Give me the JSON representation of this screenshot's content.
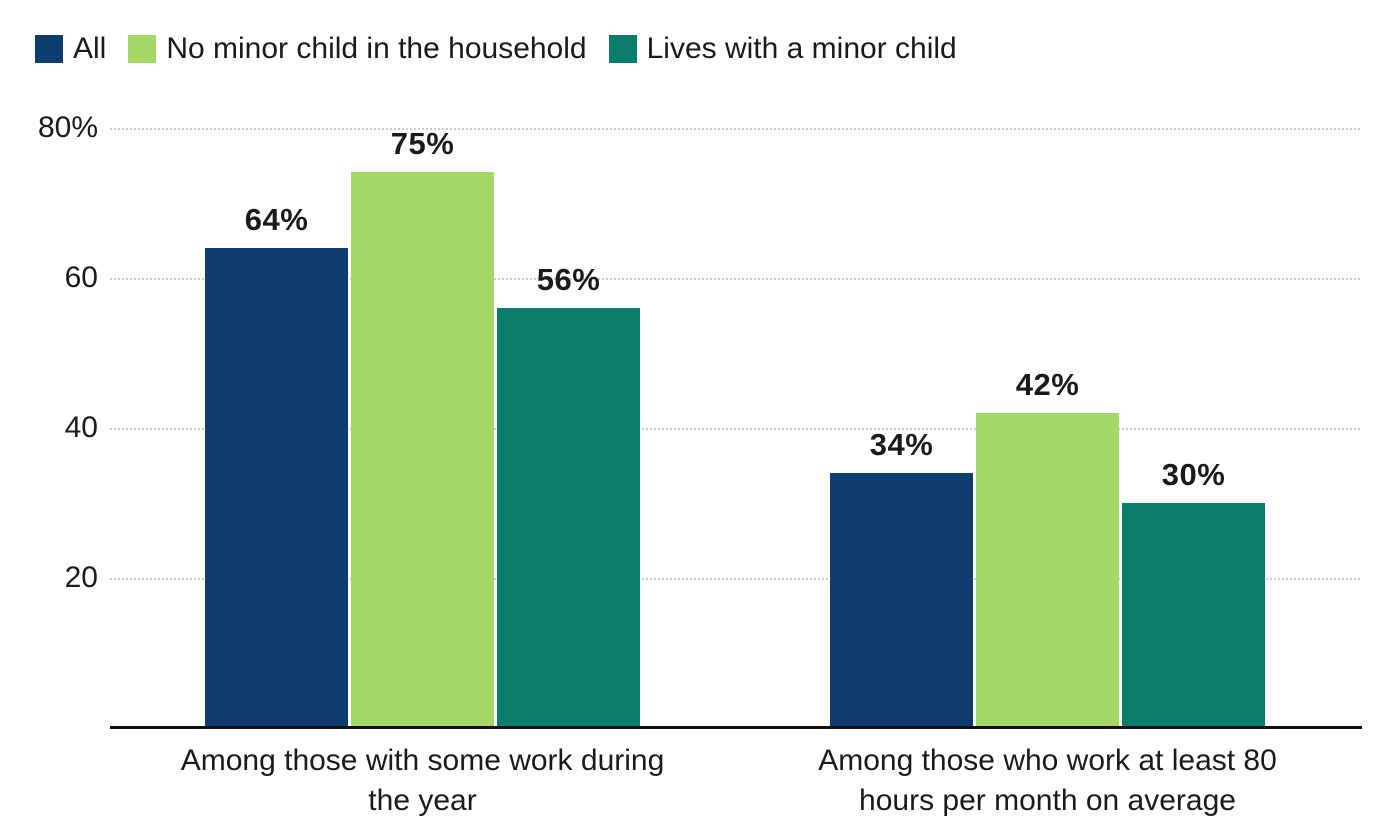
{
  "chart_data": {
    "type": "bar",
    "title": "",
    "categories": [
      "Among those with some work during the year",
      "Among those who work at least 80 hours per month on average"
    ],
    "category_label_lines": [
      [
        "Among those with some work during",
        "the year"
      ],
      [
        "Among those who work at least 80",
        "hours per month on average"
      ]
    ],
    "series": [
      {
        "name": "All",
        "color": "#0d3d6e",
        "values": [
          64,
          34
        ]
      },
      {
        "name": "No minor child in the household",
        "color": "#a4d867",
        "values": [
          75,
          42
        ]
      },
      {
        "name": "Lives with a minor child",
        "color": "#0a7d6c",
        "values": [
          56,
          30
        ]
      }
    ],
    "data_labels": [
      [
        "64%",
        "34%"
      ],
      [
        "75%",
        "42%"
      ],
      [
        "56%",
        "30%"
      ]
    ],
    "value_suffix": "%",
    "ylim": [
      0,
      80
    ],
    "yticks": [
      {
        "value": 80,
        "label": "80%"
      },
      {
        "value": 60,
        "label": "60"
      },
      {
        "value": 40,
        "label": "40"
      },
      {
        "value": 20,
        "label": "20"
      }
    ],
    "grid": "horizontal-dotted",
    "gridline_color": "#cbcbcb",
    "axis_line_color": "#111111",
    "legend_position": "top-left",
    "xlabel": "",
    "ylabel": ""
  }
}
